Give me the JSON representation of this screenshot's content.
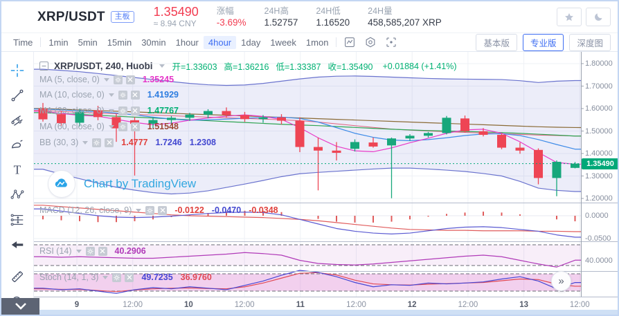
{
  "header": {
    "pair": "XRP/USDT",
    "board_tag": "主板",
    "price": "1.35490",
    "price_cny": "≈ 8.94 CNY",
    "change_label": "涨幅",
    "change_value": "-3.69%",
    "high_label": "24H高",
    "high_value": "1.52757",
    "low_label": "24H低",
    "low_value": "1.16520",
    "volume_label": "24H量",
    "volume_value": "458,585,207 XRP"
  },
  "toolbar": {
    "timeframes": [
      "Time",
      "1min",
      "5min",
      "15min",
      "30min",
      "1hour",
      "4hour",
      "1day",
      "1week",
      "1mon"
    ],
    "active_timeframe": "4hour",
    "modes": [
      "基本版",
      "专业版",
      "深度图"
    ],
    "active_mode": "专业版"
  },
  "chart_header": {
    "title": "XRP/USDT, 240, Huobi",
    "open": "开=1.33603",
    "high": "高=1.36216",
    "low": "低=1.33387",
    "close": "收=1.35490",
    "change": "+0.01884 (+1.41%)"
  },
  "indicators": {
    "rows": [
      {
        "label": "MA (5, close, 0)",
        "v1": "1.35245"
      },
      {
        "label": "MA (10, close, 0)",
        "v1": "1.41929"
      },
      {
        "label": "MA (20, close, 0)",
        "v1": "1.47767"
      },
      {
        "label": "MA (60, close, 0)",
        "v1": "1.51548"
      },
      {
        "label": "BB (30, 3)",
        "v1": "1.4777",
        "v2": "1.7246",
        "v3": "1.2308"
      }
    ],
    "macd": {
      "label": "MACD (12, 26, close, 9)",
      "v1": "-0.0122",
      "v2": "-0.0470",
      "v3": "-0.0348"
    },
    "rsi": {
      "label": "RSI (14)",
      "v1": "40.2906"
    },
    "stoch": {
      "label": "Stoch (14, 1, 3)",
      "v1": "49.7235",
      "v2": "36.9760"
    }
  },
  "watermark": {
    "text": "Chart by TradingView"
  },
  "icons": {
    "double_chevron_right": "»",
    "text_tool": "T"
  },
  "colors": {
    "up": "#17a77b",
    "down": "#ee4554",
    "band": "#6a73ce",
    "band_fill": "rgba(106,115,206,0.13)",
    "ma5": "#e83cc8",
    "ma10": "#3f8ce8",
    "ma20": "#2fa452",
    "ma60": "#8a6a35",
    "bb_mid": "#e0607c",
    "price": "#00a878",
    "macd_line": "#5a5ad2",
    "macd_signal": "#e05b5b",
    "macd_hist": "#e05b5b",
    "rsi": "#b03ab8",
    "stoch_k": "#4646d4",
    "stoch_d": "#e04854",
    "accent": "#3d6df2",
    "red_text": "#f23c51",
    "green_text": "#00b173"
  },
  "chart_data": {
    "type": "candlestick",
    "symbol": "XRP/USDT",
    "interval_minutes": 240,
    "exchange": "Huobi",
    "ylim": [
      1.2,
      1.8
    ],
    "price_line": 1.3549,
    "price_badge": "1.35490",
    "y_ticks": [
      {
        "label": "1.80000",
        "v": 1.8
      },
      {
        "label": "1.70000",
        "v": 1.7
      },
      {
        "label": "1.60000",
        "v": 1.6
      },
      {
        "label": "1.50000",
        "v": 1.5
      },
      {
        "label": "1.40000",
        "v": 1.4
      },
      {
        "label": "1.30000",
        "v": 1.3
      },
      {
        "label": "1.20000",
        "v": 1.2
      }
    ],
    "x_ticks": [
      {
        "label": "9",
        "day": true
      },
      {
        "label": "12:00",
        "day": false
      },
      {
        "label": "10",
        "day": true
      },
      {
        "label": "12:00",
        "day": false
      },
      {
        "label": "11",
        "day": true
      },
      {
        "label": "12:00",
        "day": false
      },
      {
        "label": "12",
        "day": true
      },
      {
        "label": "12:00",
        "day": false
      },
      {
        "label": "13",
        "day": true
      },
      {
        "label": "12:00",
        "day": false
      }
    ],
    "candles": [
      [
        1.6,
        1.625,
        1.542,
        1.552
      ],
      [
        1.575,
        1.59,
        1.524,
        1.535
      ],
      [
        1.537,
        1.6,
        1.521,
        1.586
      ],
      [
        1.592,
        1.612,
        1.548,
        1.562
      ],
      [
        1.562,
        1.576,
        1.452,
        1.512
      ],
      [
        1.548,
        1.562,
        1.302,
        1.532
      ],
      [
        1.532,
        1.561,
        1.512,
        1.549
      ],
      [
        1.549,
        1.567,
        1.531,
        1.559
      ],
      [
        1.559,
        1.581,
        1.545,
        1.573
      ],
      [
        1.573,
        1.597,
        1.557,
        1.589
      ],
      [
        1.589,
        1.605,
        1.561,
        1.571
      ],
      [
        1.571,
        1.585,
        1.541,
        1.553
      ],
      [
        1.553,
        1.571,
        1.537,
        1.561
      ],
      [
        1.561,
        1.575,
        1.529,
        1.546
      ],
      [
        1.546,
        1.561,
        1.406,
        1.429
      ],
      [
        1.429,
        1.471,
        1.236,
        1.413
      ],
      [
        1.413,
        1.451,
        1.369,
        1.403
      ],
      [
        1.421,
        1.463,
        1.409,
        1.451
      ],
      [
        1.449,
        1.471,
        1.426,
        1.431
      ],
      [
        1.436,
        1.471,
        1.201,
        1.467
      ],
      [
        1.467,
        1.486,
        1.456,
        1.479
      ],
      [
        1.479,
        1.496,
        1.471,
        1.491
      ],
      [
        1.491,
        1.567,
        1.485,
        1.559
      ],
      [
        1.556,
        1.569,
        1.493,
        1.499
      ],
      [
        1.499,
        1.513,
        1.476,
        1.483
      ],
      [
        1.483,
        1.489,
        1.419,
        1.426
      ],
      [
        1.426,
        1.449,
        1.399,
        1.413
      ],
      [
        1.416,
        1.423,
        1.263,
        1.291
      ],
      [
        1.291,
        1.369,
        1.21,
        1.363
      ],
      [
        1.336,
        1.362,
        1.334,
        1.355
      ]
    ],
    "overlays": {
      "ma5": [
        1.588,
        1.578,
        1.57,
        1.566,
        1.552,
        1.538,
        1.528,
        1.535,
        1.548,
        1.558,
        1.566,
        1.572,
        1.565,
        1.552,
        1.515,
        1.47,
        1.432,
        1.412,
        1.408,
        1.425,
        1.448,
        1.468,
        1.49,
        1.505,
        1.508,
        1.49,
        1.452,
        1.405,
        1.36,
        1.3525
      ],
      "ma10": [
        1.598,
        1.594,
        1.59,
        1.586,
        1.58,
        1.572,
        1.562,
        1.553,
        1.548,
        1.55,
        1.553,
        1.557,
        1.56,
        1.562,
        1.556,
        1.54,
        1.515,
        1.49,
        1.472,
        1.46,
        1.457,
        1.462,
        1.47,
        1.48,
        1.487,
        1.488,
        1.48,
        1.462,
        1.44,
        1.4193
      ],
      "ma20": [
        1.582,
        1.578,
        1.574,
        1.57,
        1.566,
        1.562,
        1.558,
        1.554,
        1.55,
        1.546,
        1.542,
        1.538,
        1.534,
        1.53,
        1.527,
        1.524,
        1.52,
        1.516,
        1.512,
        1.508,
        1.505,
        1.502,
        1.5,
        1.498,
        1.496,
        1.493,
        1.49,
        1.486,
        1.482,
        1.4777
      ],
      "ma60": [
        1.6,
        1.597,
        1.594,
        1.591,
        1.588,
        1.585,
        1.582,
        1.579,
        1.576,
        1.573,
        1.57,
        1.567,
        1.564,
        1.561,
        1.558,
        1.555,
        1.552,
        1.549,
        1.546,
        1.543,
        1.54,
        1.537,
        1.534,
        1.531,
        1.528,
        1.525,
        1.522,
        1.519,
        1.517,
        1.5155
      ],
      "bb_mid": [
        1.592,
        1.587,
        1.583,
        1.58,
        1.577,
        1.574,
        1.571,
        1.568,
        1.565,
        1.562,
        1.559,
        1.556,
        1.553,
        1.55,
        1.546,
        1.54,
        1.532,
        1.524,
        1.516,
        1.509,
        1.504,
        1.5,
        1.497,
        1.494,
        1.491,
        1.488,
        1.485,
        1.482,
        1.48,
        1.4777
      ],
      "bb_upper": [
        1.775,
        1.77,
        1.764,
        1.756,
        1.747,
        1.738,
        1.729,
        1.72,
        1.712,
        1.706,
        1.703,
        1.705,
        1.712,
        1.722,
        1.732,
        1.74,
        1.744,
        1.745,
        1.743,
        1.74,
        1.737,
        1.734,
        1.732,
        1.731,
        1.73,
        1.729,
        1.724,
        1.716,
        1.722,
        1.7246
      ],
      "bb_lower": [
        1.33,
        1.308,
        1.288,
        1.268,
        1.25,
        1.237,
        1.226,
        1.22,
        1.224,
        1.234,
        1.249,
        1.264,
        1.28,
        1.297,
        1.31,
        1.316,
        1.321,
        1.326,
        1.331,
        1.335,
        1.335,
        1.331,
        1.326,
        1.32,
        1.311,
        1.3,
        1.276,
        1.246,
        1.236,
        1.2308
      ]
    },
    "macd": {
      "macd": [
        0.015,
        0.01,
        0.005,
        0.0,
        -0.003,
        -0.004,
        -0.003,
        -0.001,
        0.002,
        0.005,
        0.007,
        0.008,
        0.007,
        0.002,
        -0.008,
        -0.018,
        -0.028,
        -0.034,
        -0.038,
        -0.04,
        -0.038,
        -0.033,
        -0.028,
        -0.025,
        -0.024,
        -0.026,
        -0.03,
        -0.034,
        -0.042,
        -0.047
      ],
      "signal": [
        0.023,
        0.02,
        0.017,
        0.014,
        0.011,
        0.008,
        0.005,
        0.002,
        0.0,
        -0.001,
        -0.002,
        -0.003,
        -0.004,
        -0.006,
        -0.008,
        -0.011,
        -0.015,
        -0.019,
        -0.023,
        -0.027,
        -0.03,
        -0.031,
        -0.032,
        -0.032,
        -0.033,
        -0.033,
        -0.033,
        -0.034,
        -0.034,
        -0.0348
      ],
      "ticks": [
        {
          "label": "0.0000",
          "v": 0
        },
        {
          "label": "-0.0500",
          "v": -0.05
        }
      ]
    },
    "rsi": {
      "values": [
        47,
        46,
        47,
        46,
        45,
        44,
        44,
        46,
        48,
        50,
        52,
        55,
        53,
        50,
        40,
        34,
        32,
        31,
        33,
        36,
        39,
        42,
        45,
        48,
        50,
        47,
        40,
        33,
        27,
        40.29
      ],
      "levels": [
        70,
        30
      ],
      "tick": {
        "label": "40.0000",
        "v": 40
      }
    },
    "stoch": {
      "k": [
        30,
        25,
        28,
        20,
        12,
        25,
        32,
        28,
        35,
        30,
        25,
        40,
        55,
        75,
        92,
        85,
        70,
        50,
        35,
        42,
        40,
        48,
        45,
        48,
        52,
        62,
        70,
        55,
        28,
        49.72
      ],
      "d": [
        28,
        26,
        26,
        22,
        18,
        24,
        28,
        30,
        31,
        29,
        28,
        35,
        48,
        65,
        82,
        84,
        76,
        58,
        45,
        42,
        41,
        44,
        46,
        48,
        50,
        56,
        62,
        60,
        44,
        36.98
      ],
      "levels": [
        80,
        20
      ]
    }
  }
}
